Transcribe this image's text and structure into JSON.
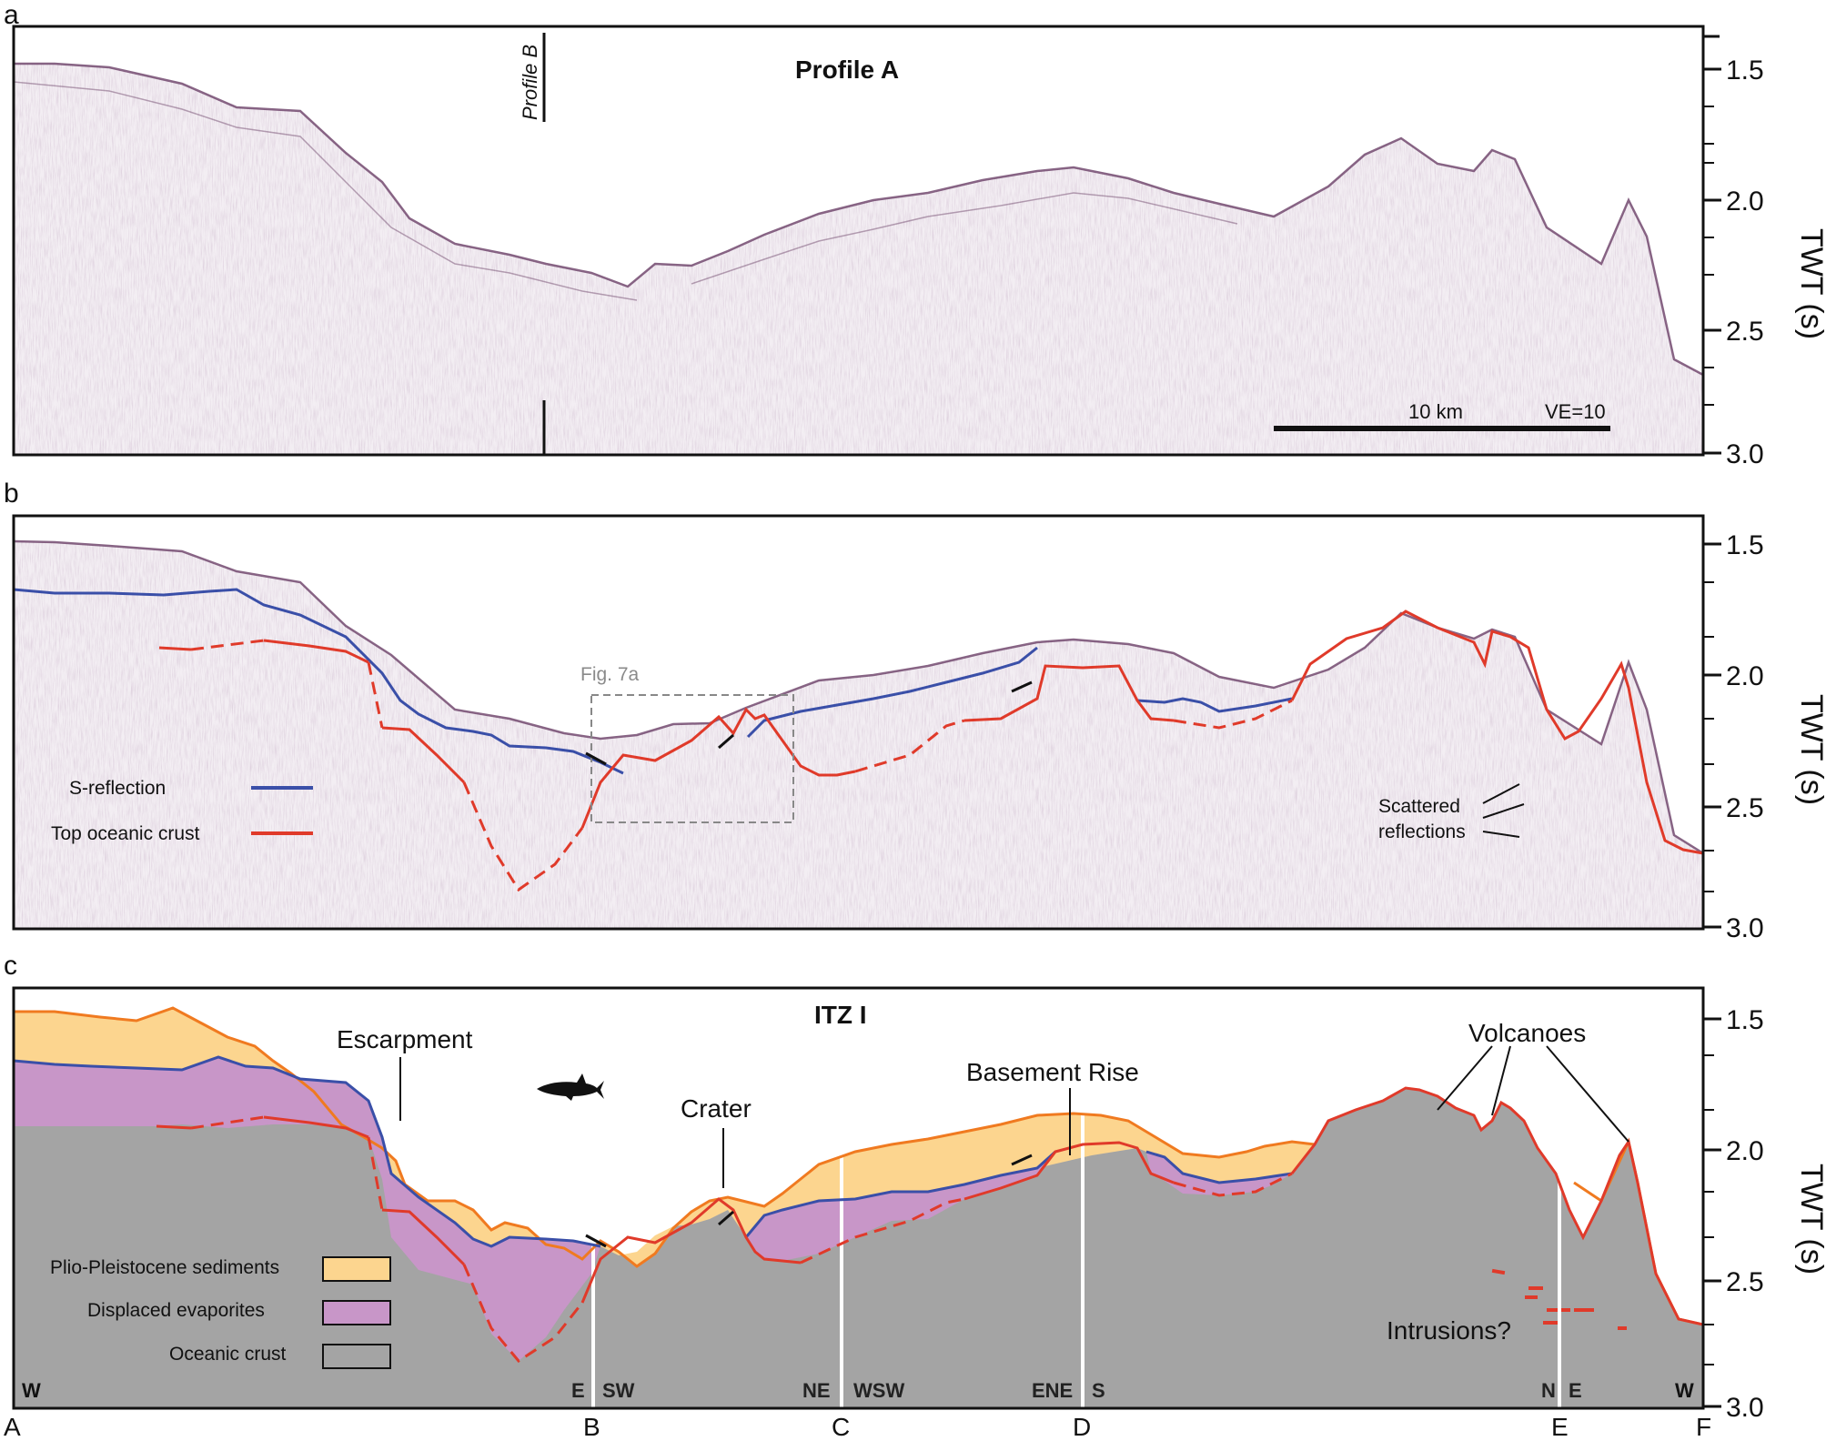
{
  "panels": {
    "a": {
      "label": "a",
      "title": "Profile A",
      "profile_b_marker": "Profile B",
      "scalebar_label": "10 km",
      "ve_label": "VE=10"
    },
    "b": {
      "label": "b",
      "fig_ref": "Fig. 7a",
      "legend": [
        {
          "label": "S-reflection",
          "color": "#3a4fa8"
        },
        {
          "label": "Top oceanic crust",
          "color": "#e03a2a"
        }
      ],
      "scattered_label_1": "Scattered",
      "scattered_label_2": "reflections"
    },
    "c": {
      "label": "c",
      "title": "ITZ I",
      "annotations": {
        "escarpment": "Escarpment",
        "crater": "Crater",
        "basement_rise": "Basement Rise",
        "volcanoes": "Volcanoes",
        "intrusions": "Intrusions?"
      },
      "legend": [
        {
          "label": "Plio-Pleistocene sediments",
          "color": "#fcd58f"
        },
        {
          "label": "Displaced evaporites",
          "color": "#c896c8"
        },
        {
          "label": "Oceanic crust",
          "color": "#a4a4a4"
        }
      ],
      "directions": [
        "W",
        "E",
        "SW",
        "NE",
        "WSW",
        "ENE",
        "S",
        "N",
        "E",
        "W"
      ]
    }
  },
  "axis": {
    "label": "TWT (s)",
    "ticks": [
      "1.5",
      "2.0",
      "2.5",
      "3.0"
    ]
  },
  "locations": [
    "A",
    "B",
    "C",
    "D",
    "E",
    "F"
  ],
  "colors": {
    "sediment": "#fcd58f",
    "evaporite": "#c896c8",
    "crust": "#a4a4a4",
    "seafloor_line": "#f07a20",
    "s_reflection": "#3a4fa8",
    "top_crust": "#e03a2a"
  }
}
